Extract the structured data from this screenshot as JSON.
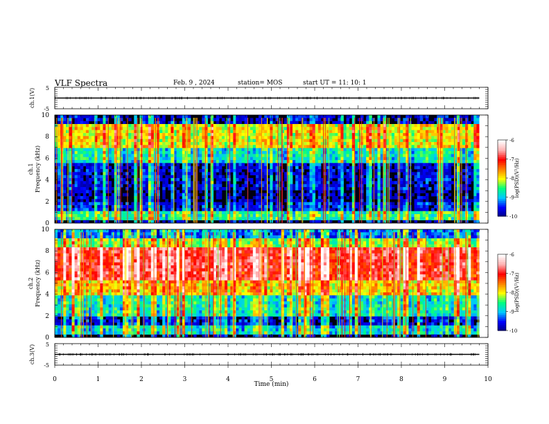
{
  "header": {
    "title": "VLF Spectra",
    "date": "Feb. 9 , 2024",
    "station": "station= MOS",
    "start": "start UT = 11: 10: 1"
  },
  "chart_data": [
    {
      "type": "line",
      "title": "",
      "xlabel": "",
      "ylabel": "ch.1(V)",
      "xlim": [
        0,
        10
      ],
      "ylim": [
        -5,
        5
      ],
      "yticks": [
        "5",
        "-5"
      ],
      "series": [
        {
          "x": [
            0,
            9.8
          ],
          "y": [
            0,
            0
          ]
        }
      ]
    },
    {
      "type": "heatmap",
      "title": "",
      "ylabel": "ch.1 Frequency (kHz)",
      "xlim": [
        0,
        10
      ],
      "ylim": [
        0,
        10
      ],
      "yticks": [
        "0",
        "2",
        "4",
        "6",
        "8",
        "10"
      ],
      "data_end_min": 9.8,
      "colorbar": {
        "label": "log(PSD)(V²/Hz)",
        "ticks": [
          "-6",
          "-7",
          "-8",
          "-9",
          "-10"
        ],
        "range": [
          -10,
          -6
        ],
        "colors": [
          "#000080",
          "#0000ff",
          "#00c8ff",
          "#00ff80",
          "#ffff00",
          "#ff8000",
          "#ff0000",
          "#ffb0b0",
          "#ffffff"
        ]
      },
      "bands_khz": [
        [
          0.3,
          1.2,
          -8.6
        ],
        [
          1.2,
          2.0,
          -9.6
        ],
        [
          2.0,
          3.0,
          -9.9
        ],
        [
          3.0,
          5.5,
          -9.7
        ],
        [
          5.5,
          7.0,
          -8.8
        ],
        [
          7.0,
          9.2,
          -8.0
        ],
        [
          9.2,
          10.0,
          -9.8
        ]
      ]
    },
    {
      "type": "heatmap",
      "title": "",
      "ylabel": "ch.2 Frequency (kHz)",
      "xlim": [
        0,
        10
      ],
      "ylim": [
        0,
        10
      ],
      "yticks": [
        "0",
        "2",
        "4",
        "6",
        "8",
        "10"
      ],
      "data_end_min": 9.8,
      "colorbar": {
        "label": "log(PSD)(V²/Hz)",
        "ticks": [
          "-6",
          "-7",
          "-8",
          "-9",
          "-10"
        ],
        "range": [
          -10,
          -6
        ],
        "colors": [
          "#000080",
          "#0000ff",
          "#00c8ff",
          "#00ff80",
          "#ffff00",
          "#ff8000",
          "#ff0000",
          "#ffb0b0",
          "#ffffff"
        ]
      },
      "bands_khz": [
        [
          0.3,
          1.2,
          -8.8
        ],
        [
          1.2,
          2.0,
          -9.6
        ],
        [
          2.0,
          4.0,
          -8.7
        ],
        [
          4.0,
          5.2,
          -7.8
        ],
        [
          5.2,
          8.2,
          -6.9
        ],
        [
          8.2,
          9.2,
          -8.2
        ],
        [
          9.2,
          10.0,
          -9.2
        ]
      ]
    },
    {
      "type": "line",
      "title": "",
      "xlabel": "Time (min)",
      "ylabel": "ch.3(V)",
      "xlim": [
        0,
        10
      ],
      "ylim": [
        -5,
        5
      ],
      "xticks": [
        "0",
        "1",
        "2",
        "3",
        "4",
        "5",
        "6",
        "7",
        "8",
        "9",
        "10"
      ],
      "yticks": [
        "5",
        "-5"
      ],
      "series": [
        {
          "x": [
            0,
            9.8
          ],
          "y": [
            0,
            0
          ]
        }
      ]
    }
  ]
}
